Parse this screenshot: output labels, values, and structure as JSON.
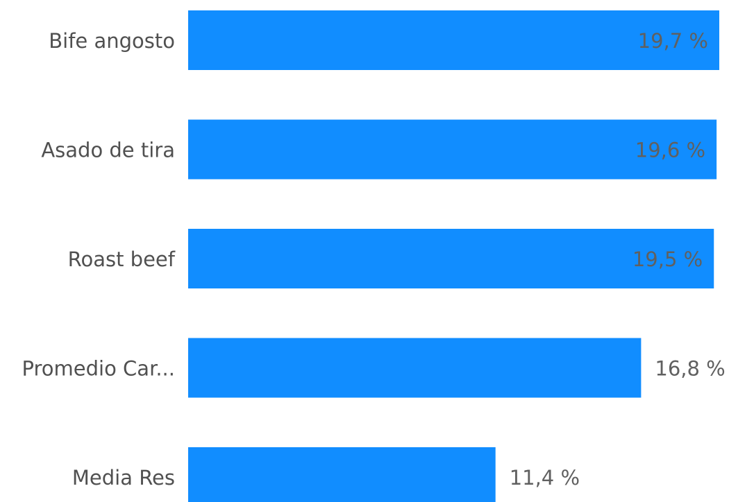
{
  "chart_data": {
    "type": "bar",
    "orientation": "horizontal",
    "categories": [
      "Bife angosto",
      "Asado de tira",
      "Roast beef",
      "Promedio Car...",
      "Media Res"
    ],
    "values": [
      19.7,
      19.6,
      19.5,
      16.8,
      11.4
    ],
    "value_labels": [
      "19,7 %",
      "19,6 %",
      "19,5 %",
      "16,8 %",
      "11,4 %"
    ],
    "color": "#118dff"
  }
}
